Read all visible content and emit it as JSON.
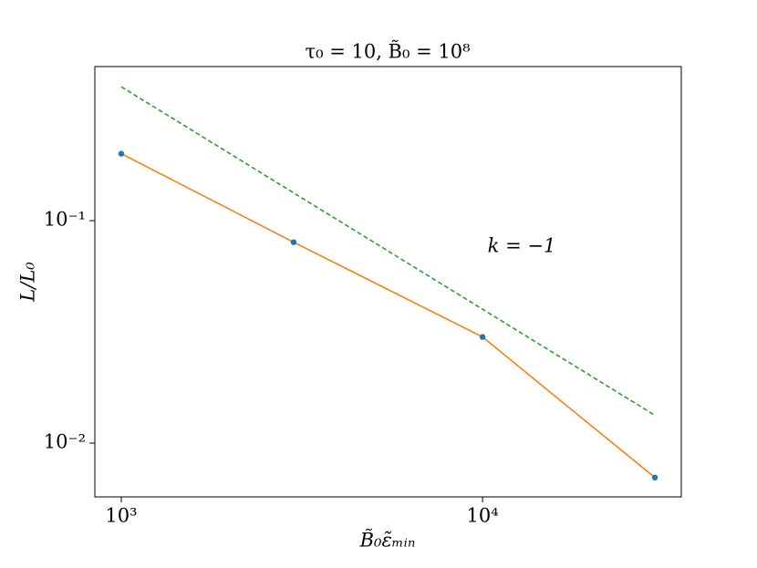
{
  "chart_data": {
    "type": "line",
    "title": "τ₀ = 10, B̃₀ = 10⁸",
    "x_label": "B̃₀ε̃ₘᵢₙ",
    "y_label": "L/L₀",
    "annotation": "k = −1",
    "x": [
      1000,
      3000,
      10000,
      30000
    ],
    "series": [
      {
        "color": "#ff7f0e",
        "marker_color": "#1f77b4",
        "values": [
          0.2,
          0.08,
          0.03,
          0.007
        ]
      },
      {
        "color": "#2ca02c",
        "dashed": true,
        "x": [
          1000,
          30000
        ],
        "values": [
          0.4,
          0.013333
        ]
      }
    ],
    "xscale": "log",
    "yscale": "log",
    "xlim": [
      845,
      35500
    ],
    "ylim": [
      0.00573,
      0.493
    ],
    "xticks": [
      {
        "value": 1000,
        "label": "10³"
      },
      {
        "value": 10000,
        "label": "10⁴"
      }
    ],
    "yticks": [
      {
        "value": 0.01,
        "label": "10⁻²"
      },
      {
        "value": 0.1,
        "label": "10⁻¹"
      }
    ]
  }
}
